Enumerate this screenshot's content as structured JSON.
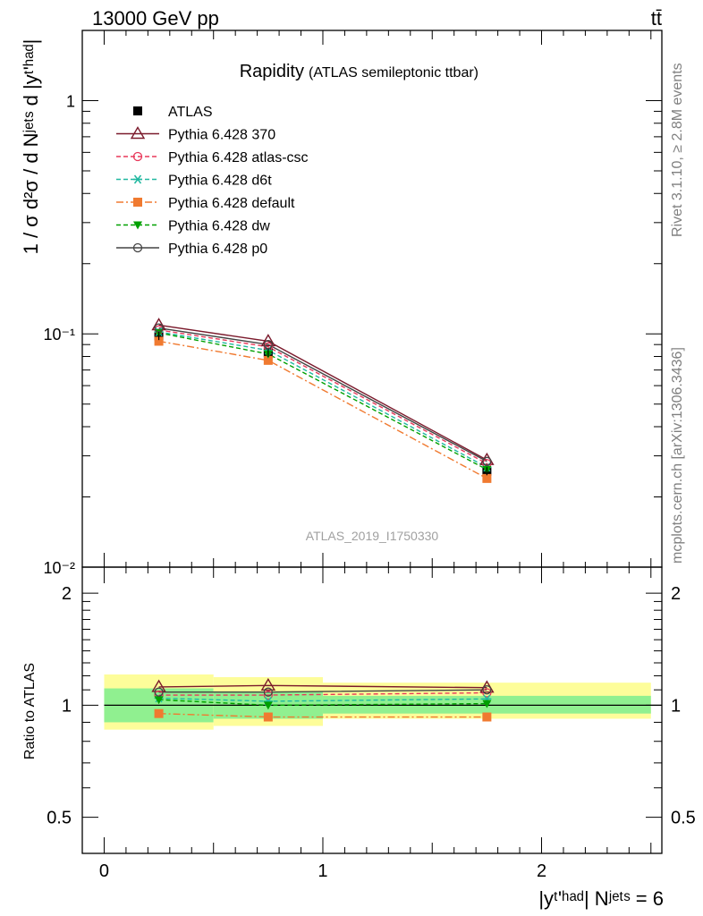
{
  "header": {
    "left": "13000 GeV pp",
    "right": "tt̄"
  },
  "side_labels": {
    "rivet": "Rivet 3.1.10, ≥ 2.8M events",
    "mcplots": "mcplots.cern.ch [arXiv:1306.3436]"
  },
  "chart_data": [
    {
      "type": "line",
      "panel": "main",
      "title": "Rapidity",
      "subtitle": "(ATLAS semileptonic ttbar)",
      "ylabel": "1 / σ d²σ / d Nʲᵉᵗˢ d |yᵗ'ʰᵃᵈ|",
      "yscale": "log",
      "ylim": [
        0.01,
        2.0
      ],
      "xlim": [
        -0.1,
        2.55
      ],
      "y_tick_labels": [
        "10⁻²",
        "10⁻¹",
        "1"
      ],
      "watermark": "ATLAS_2019_I1750330",
      "legend_placement": "top-left",
      "x": [
        0.25,
        0.75,
        1.75
      ],
      "x_bins": [
        [
          0.0,
          0.5
        ],
        [
          0.5,
          1.0
        ],
        [
          1.0,
          2.5
        ]
      ],
      "series": [
        {
          "name": "ATLAS",
          "color": "#000000",
          "marker": "square",
          "values": [
            0.098,
            0.083,
            0.0258
          ]
        },
        {
          "name": "Pythia 6.428 370",
          "color": "#7b1a2c",
          "marker": "triangle-open",
          "line": "solid",
          "values": [
            0.109,
            0.093,
            0.0288
          ]
        },
        {
          "name": "Pythia 6.428 atlas-csc",
          "color": "#e8385a",
          "marker": "circle-open",
          "line": "dashed",
          "values": [
            0.104,
            0.088,
            0.0278
          ]
        },
        {
          "name": "Pythia 6.428 d6t",
          "color": "#20b8a0",
          "marker": "asterisk",
          "line": "dashed",
          "values": [
            0.102,
            0.085,
            0.0268
          ]
        },
        {
          "name": "Pythia 6.428 default",
          "color": "#f07a30",
          "marker": "square",
          "line": "dashdot",
          "values": [
            0.093,
            0.077,
            0.024
          ]
        },
        {
          "name": "Pythia 6.428 dw",
          "color": "#00a000",
          "marker": "triangle-down",
          "line": "dashed",
          "values": [
            0.101,
            0.082,
            0.0262
          ]
        },
        {
          "name": "Pythia 6.428 p0",
          "color": "#444444",
          "marker": "circle-open",
          "line": "solid",
          "values": [
            0.106,
            0.09,
            0.0284
          ]
        }
      ]
    },
    {
      "type": "line",
      "panel": "ratio",
      "ylabel": "Ratio to ATLAS",
      "yscale": "log",
      "ylim": [
        0.4,
        2.35
      ],
      "y_tick_labels": [
        "0.5",
        "1",
        "2"
      ],
      "xlabel": "|yᵗ'ʰᵃᵈ| Nʲᵉᵗˢ = 6",
      "x_tick_labels": [
        "0",
        "1",
        "2"
      ],
      "x": [
        0.25,
        0.75,
        1.75
      ],
      "bands": {
        "stat_color": "#90f090",
        "total_color": "#fdfd9a",
        "stat": [
          [
            0.9,
            1.11
          ],
          [
            0.92,
            1.09
          ],
          [
            0.95,
            1.06
          ]
        ],
        "total": [
          [
            0.86,
            1.21
          ],
          [
            0.88,
            1.19
          ],
          [
            0.92,
            1.15
          ]
        ]
      },
      "series": [
        {
          "name": "Pythia 6.428 370",
          "values": [
            1.12,
            1.13,
            1.115
          ]
        },
        {
          "name": "Pythia 6.428 atlas-csc",
          "values": [
            1.065,
            1.065,
            1.08
          ]
        },
        {
          "name": "Pythia 6.428 d6t",
          "values": [
            1.045,
            1.025,
            1.04
          ]
        },
        {
          "name": "Pythia 6.428 default",
          "values": [
            0.95,
            0.93,
            0.93
          ]
        },
        {
          "name": "Pythia 6.428 dw",
          "values": [
            1.035,
            1.0,
            1.01
          ]
        },
        {
          "name": "Pythia 6.428 p0",
          "values": [
            1.085,
            1.085,
            1.1
          ]
        }
      ]
    }
  ]
}
